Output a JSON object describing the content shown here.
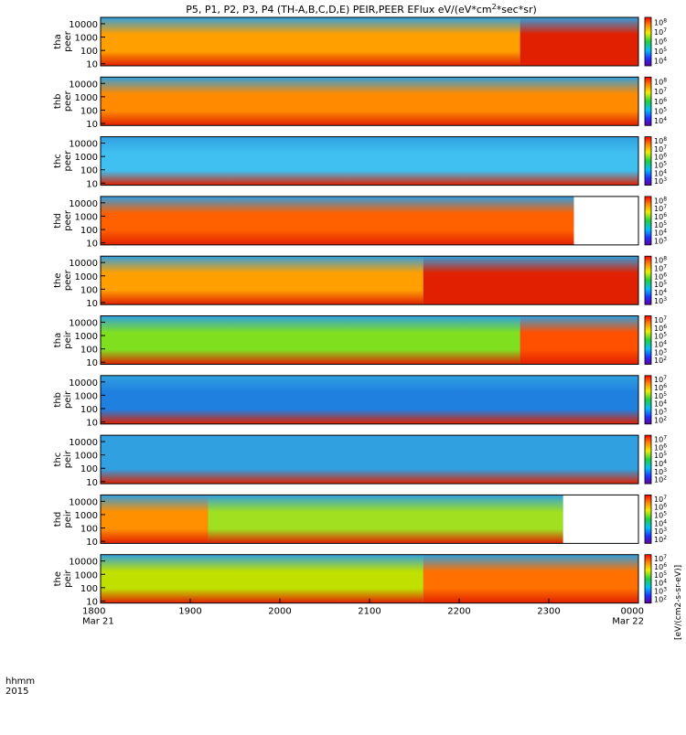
{
  "chart_data": {
    "type": "heatmap",
    "title_main": "P5, P1, P2, P3, P4 (TH-A,B,C,D,E) PEIR,PEER EFlux eV/(eV*cm",
    "title_sup": "2",
    "title_tail": "*sec*sr)",
    "x_ticks": [
      "1800",
      "1900",
      "2000",
      "2100",
      "2200",
      "2300",
      "0000"
    ],
    "x_ticks_sub": [
      "Mar 21",
      "",
      "",
      "",
      "",
      "",
      "Mar 22"
    ],
    "x_label_top": "hhmm",
    "x_label_bottom": "2015",
    "y_ticks": [
      "10",
      "100",
      "1000",
      "10000"
    ],
    "y_range": [
      7,
      30000
    ],
    "cbar_label": "[eV/(cm2-s-sr-eV)]",
    "panels": [
      {
        "probe": "tha",
        "type": "peer",
        "cbar_ticks": [
          "10^4",
          "10^5",
          "10^6",
          "10^7",
          "10^8"
        ],
        "regions": [
          [
            0,
            0.78,
            "#ffa000"
          ],
          [
            0.78,
            1,
            "#e02000"
          ]
        ],
        "white_from": null
      },
      {
        "probe": "thb",
        "type": "peer",
        "cbar_ticks": [
          "10^4",
          "10^5",
          "10^6",
          "10^7",
          "10^8"
        ],
        "regions": [
          [
            0,
            1,
            "#ff8a00"
          ]
        ],
        "white_from": null
      },
      {
        "probe": "thc",
        "type": "peer",
        "cbar_ticks": [
          "10^3",
          "10^4",
          "10^5",
          "10^6",
          "10^7",
          "10^8"
        ],
        "regions": [
          [
            0,
            1,
            "#40c0f0"
          ]
        ],
        "white_from": null
      },
      {
        "probe": "thd",
        "type": "peer",
        "cbar_ticks": [
          "10^3",
          "10^4",
          "10^5",
          "10^6",
          "10^7",
          "10^8"
        ],
        "regions": [
          [
            0,
            1,
            "#ff6000"
          ]
        ],
        "white_from": 0.88
      },
      {
        "probe": "the",
        "type": "peer",
        "cbar_ticks": [
          "10^3",
          "10^4",
          "10^5",
          "10^6",
          "10^7",
          "10^8"
        ],
        "regions": [
          [
            0,
            0.6,
            "#ffa000"
          ],
          [
            0.6,
            1,
            "#e02000"
          ]
        ],
        "white_from": null
      },
      {
        "probe": "tha",
        "type": "peir",
        "cbar_ticks": [
          "10^2",
          "10^3",
          "10^4",
          "10^5",
          "10^6",
          "10^7"
        ],
        "regions": [
          [
            0,
            0.78,
            "#80e020"
          ],
          [
            0.78,
            1,
            "#ff5000"
          ]
        ],
        "white_from": null
      },
      {
        "probe": "thb",
        "type": "peir",
        "cbar_ticks": [
          "10^2",
          "10^3",
          "10^4",
          "10^5",
          "10^6",
          "10^7"
        ],
        "regions": [
          [
            0,
            1,
            "#2080e0"
          ]
        ],
        "white_from": null
      },
      {
        "probe": "thc",
        "type": "peir",
        "cbar_ticks": [
          "10^2",
          "10^3",
          "10^4",
          "10^5",
          "10^6",
          "10^7"
        ],
        "regions": [
          [
            0,
            1,
            "#30a0e0"
          ]
        ],
        "white_from": null
      },
      {
        "probe": "thd",
        "type": "peir",
        "cbar_ticks": [
          "10^2",
          "10^3",
          "10^4",
          "10^5",
          "10^6",
          "10^7"
        ],
        "regions": [
          [
            0,
            0.2,
            "#ff9000"
          ],
          [
            0.2,
            0.86,
            "#a0e020"
          ]
        ],
        "white_from": 0.86
      },
      {
        "probe": "the",
        "type": "peir",
        "cbar_ticks": [
          "10^2",
          "10^3",
          "10^4",
          "10^5",
          "10^6",
          "10^7"
        ],
        "regions": [
          [
            0,
            0.6,
            "#c0e000"
          ],
          [
            0.6,
            1,
            "#ff7000"
          ]
        ],
        "white_from": null
      }
    ]
  }
}
